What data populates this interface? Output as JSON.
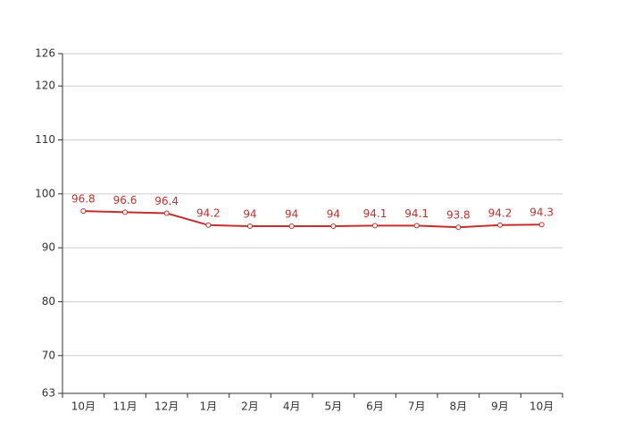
{
  "chart_data": {
    "type": "line",
    "categories": [
      "10月",
      "11月",
      "12月",
      "1月",
      "2月",
      "4月",
      "5月",
      "6月",
      "7月",
      "8月",
      "9月",
      "10月"
    ],
    "values": [
      96.8,
      96.6,
      96.4,
      94.2,
      94,
      94,
      94,
      94.1,
      94.1,
      93.8,
      94.2,
      94.3
    ],
    "color": "#c0302c",
    "ylim": [
      63,
      126
    ],
    "yticks": [
      63,
      70,
      80,
      90,
      100,
      110,
      120,
      126
    ],
    "grid": true
  }
}
